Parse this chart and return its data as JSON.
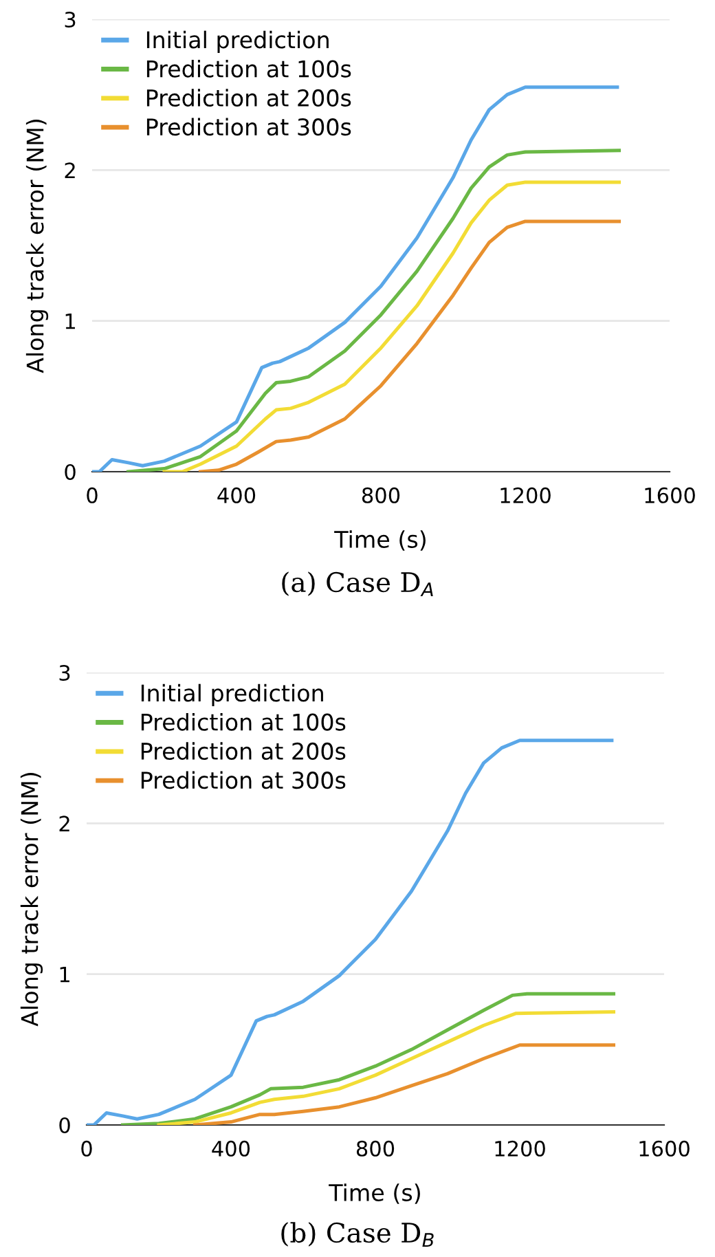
{
  "chart_data": [
    {
      "type": "line",
      "xlabel": "Time (s)",
      "ylabel": "Along track error (NM)",
      "annotations": [
        "(a) Case D$_{A}$"
      ],
      "xlim": [
        0,
        1600
      ],
      "xticks": [
        0,
        400,
        800,
        1200,
        1600
      ],
      "ylim": [
        0,
        3
      ],
      "yticks": [
        0,
        1,
        2,
        3
      ],
      "grid": "y",
      "legend": "top left",
      "line_style": "solid",
      "marker": "none",
      "series": [
        {
          "name": "Initial prediction",
          "color": "#5aa7e8",
          "x": [
            0,
            20,
            55,
            100,
            140,
            200,
            300,
            400,
            470,
            500,
            520,
            600,
            700,
            800,
            900,
            1000,
            1050,
            1100,
            1150,
            1200,
            1455
          ],
          "values": [
            0,
            0.0,
            0.08,
            0.06,
            0.04,
            0.07,
            0.17,
            0.33,
            0.69,
            0.72,
            0.73,
            0.82,
            0.99,
            1.23,
            1.55,
            1.95,
            2.2,
            2.4,
            2.5,
            2.55,
            2.55
          ]
        },
        {
          "name": "Prediction at 100s",
          "color": "#6ab845",
          "x": [
            100,
            150,
            200,
            300,
            400,
            480,
            510,
            550,
            600,
            700,
            800,
            900,
            1000,
            1050,
            1100,
            1150,
            1200,
            1460
          ],
          "values": [
            0,
            0.01,
            0.02,
            0.1,
            0.27,
            0.52,
            0.59,
            0.6,
            0.63,
            0.8,
            1.04,
            1.33,
            1.68,
            1.88,
            2.02,
            2.1,
            2.12,
            2.13
          ]
        },
        {
          "name": "Prediction at 200s",
          "color": "#f2dc35",
          "x": [
            200,
            250,
            300,
            400,
            480,
            510,
            550,
            600,
            700,
            800,
            900,
            1000,
            1050,
            1100,
            1150,
            1200,
            1460
          ],
          "values": [
            0,
            0,
            0.05,
            0.17,
            0.35,
            0.41,
            0.42,
            0.46,
            0.58,
            0.82,
            1.1,
            1.45,
            1.65,
            1.8,
            1.9,
            1.92,
            1.92
          ]
        },
        {
          "name": "Prediction at 300s",
          "color": "#e8902e",
          "x": [
            300,
            350,
            400,
            460,
            510,
            550,
            600,
            700,
            800,
            900,
            1000,
            1050,
            1100,
            1150,
            1200,
            1460
          ],
          "values": [
            0,
            0.01,
            0.05,
            0.13,
            0.2,
            0.21,
            0.23,
            0.35,
            0.57,
            0.85,
            1.17,
            1.35,
            1.52,
            1.62,
            1.66,
            1.66
          ]
        }
      ]
    },
    {
      "type": "line",
      "xlabel": "Time (s)",
      "ylabel": "Along track error (NM)",
      "annotations": [
        "(b) Case D$_{B}$"
      ],
      "xlim": [
        0,
        1600
      ],
      "xticks": [
        0,
        400,
        800,
        1200,
        1600
      ],
      "ylim": [
        0,
        3
      ],
      "yticks": [
        0,
        1,
        2,
        3
      ],
      "grid": "y",
      "legend": "top left",
      "line_style": "solid",
      "marker": "none",
      "series": [
        {
          "name": "Initial prediction",
          "color": "#5aa7e8",
          "x": [
            0,
            20,
            55,
            100,
            140,
            200,
            300,
            400,
            470,
            500,
            520,
            600,
            700,
            800,
            900,
            1000,
            1050,
            1100,
            1150,
            1200,
            1455
          ],
          "values": [
            0,
            0.0,
            0.08,
            0.06,
            0.04,
            0.07,
            0.17,
            0.33,
            0.69,
            0.72,
            0.73,
            0.82,
            0.99,
            1.23,
            1.55,
            1.95,
            2.2,
            2.4,
            2.5,
            2.55,
            2.55
          ]
        },
        {
          "name": "Prediction at 100s",
          "color": "#6ab845",
          "x": [
            100,
            200,
            300,
            400,
            480,
            510,
            600,
            700,
            800,
            900,
            1000,
            1100,
            1180,
            1220,
            1460
          ],
          "values": [
            0,
            0.01,
            0.04,
            0.12,
            0.2,
            0.24,
            0.25,
            0.3,
            0.39,
            0.5,
            0.63,
            0.76,
            0.86,
            0.87,
            0.87
          ]
        },
        {
          "name": "Prediction at 200s",
          "color": "#f2dc35",
          "x": [
            200,
            300,
            400,
            480,
            520,
            600,
            700,
            800,
            900,
            1000,
            1100,
            1190,
            1460
          ],
          "values": [
            0,
            0.02,
            0.08,
            0.15,
            0.17,
            0.19,
            0.24,
            0.33,
            0.44,
            0.55,
            0.66,
            0.74,
            0.75
          ]
        },
        {
          "name": "Prediction at 300s",
          "color": "#e8902e",
          "x": [
            300,
            400,
            480,
            520,
            600,
            700,
            800,
            900,
            1000,
            1100,
            1200,
            1460
          ],
          "values": [
            0,
            0.02,
            0.07,
            0.07,
            0.09,
            0.12,
            0.18,
            0.26,
            0.34,
            0.44,
            0.53,
            0.53
          ]
        }
      ]
    }
  ]
}
